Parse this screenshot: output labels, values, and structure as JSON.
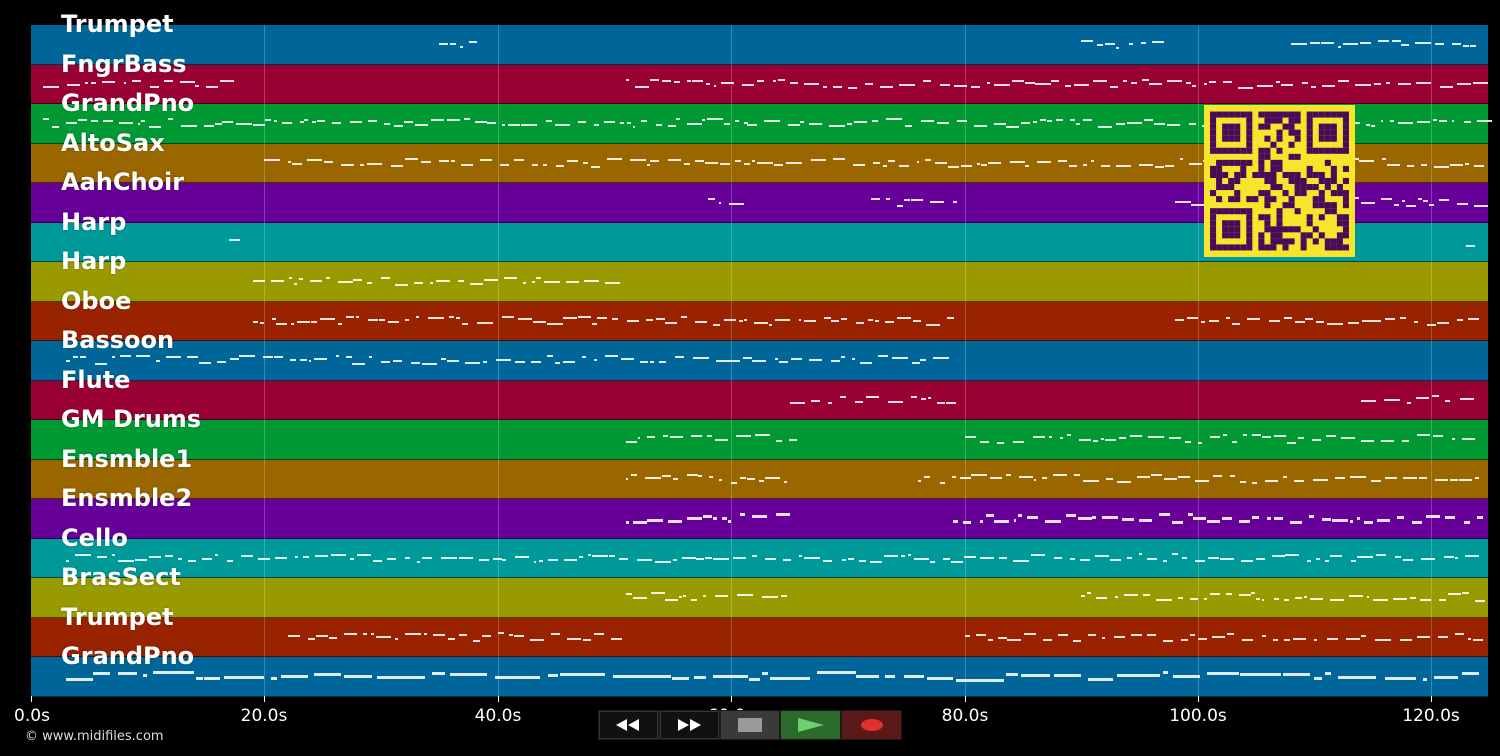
{
  "tracks": [
    {
      "name": "Trumpet",
      "color": "#006699"
    },
    {
      "name": "FngrBass",
      "color": "#990033"
    },
    {
      "name": "GrandPno",
      "color": "#009933"
    },
    {
      "name": "AltoSax",
      "color": "#996600"
    },
    {
      "name": "AahChoir",
      "color": "#660099"
    },
    {
      "name": "Harp",
      "color": "#009999"
    },
    {
      "name": "Harp",
      "color": "#999900"
    },
    {
      "name": "Oboe",
      "color": "#992200"
    },
    {
      "name": "Bassoon",
      "color": "#006699"
    },
    {
      "name": "Flute",
      "color": "#990033"
    },
    {
      "name": "GM Drums",
      "color": "#009933"
    },
    {
      "name": "Ensmble1",
      "color": "#996600"
    },
    {
      "name": "Ensmble2",
      "color": "#660099"
    },
    {
      "name": "Cello",
      "color": "#009999"
    },
    {
      "name": "BrasSect",
      "color": "#999900"
    },
    {
      "name": "Trumpet",
      "color": "#992200"
    },
    {
      "name": "GrandPno",
      "color": "#006699"
    }
  ],
  "time_axis": {
    "ticks": [
      "0.0s",
      "20.0s",
      "40.0s",
      "60.0s",
      "80.0s",
      "100.0s",
      "120.0s"
    ],
    "tick_seconds": [
      0,
      20,
      40,
      60,
      80,
      100,
      120
    ],
    "max_seconds": 125
  },
  "copyright": "© www.midifiles.com",
  "controls": [
    {
      "name": "rewind-button",
      "icon": "rewind-icon"
    },
    {
      "name": "fast-forward-button",
      "icon": "fast-forward-icon"
    },
    {
      "name": "stop-button",
      "icon": "stop-icon"
    },
    {
      "name": "play-button",
      "icon": "play-icon"
    },
    {
      "name": "record-button",
      "icon": "record-icon"
    }
  ]
}
